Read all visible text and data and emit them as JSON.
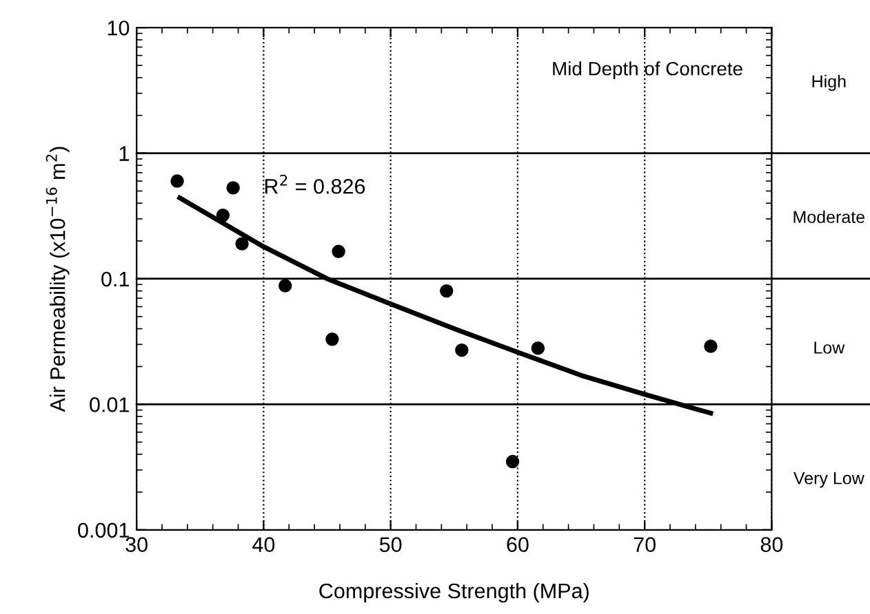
{
  "chart_data": {
    "type": "scatter",
    "xlabel": "Compressive Strength (MPa)",
    "ylabel": "Air Permeability (x10$^{−16}$ m$^{2}$)",
    "series": [
      {
        "color": "#000000",
        "marker": "circle",
        "x": [
          33.2,
          36.8,
          37.6,
          38.3,
          41.7,
          45.4,
          45.9,
          54.4,
          55.6,
          59.6,
          61.6,
          75.2
        ],
        "values": [
          0.6,
          0.32,
          0.53,
          0.19,
          0.088,
          0.033,
          0.165,
          0.08,
          0.027,
          0.0035,
          0.028,
          0.029
        ]
      },
      {
        "type": "line",
        "color": "#000000",
        "line_style": "solid",
        "x": [
          33.4,
          40,
          45,
          50,
          55,
          60,
          65,
          70,
          75.2
        ],
        "values": [
          0.44,
          0.18,
          0.1,
          0.063,
          0.04,
          0.026,
          0.017,
          0.012,
          0.0085
        ]
      }
    ],
    "log": "y",
    "xlim": [
      30,
      80
    ],
    "xticks": [
      30,
      40,
      50,
      60,
      70,
      80
    ],
    "ylim": [
      0.001,
      10
    ],
    "yticks": [
      0.001,
      0.01,
      0.1,
      1,
      10
    ],
    "grid": "x",
    "ref_lines": [
      {
        "axis": "y",
        "value": 1,
        "color": "#000000",
        "line_style": "solid"
      },
      {
        "axis": "y",
        "value": 0.1,
        "color": "#000000",
        "line_style": "solid"
      },
      {
        "axis": "y",
        "value": 0.01,
        "color": "#000000",
        "line_style": "solid"
      }
    ],
    "annotations": [
      "Mid Depth of Concrete",
      "R$^{2}$ = 0.826",
      "High",
      "Moderate",
      "Low",
      "Very Low"
    ],
    "legend": false
  }
}
